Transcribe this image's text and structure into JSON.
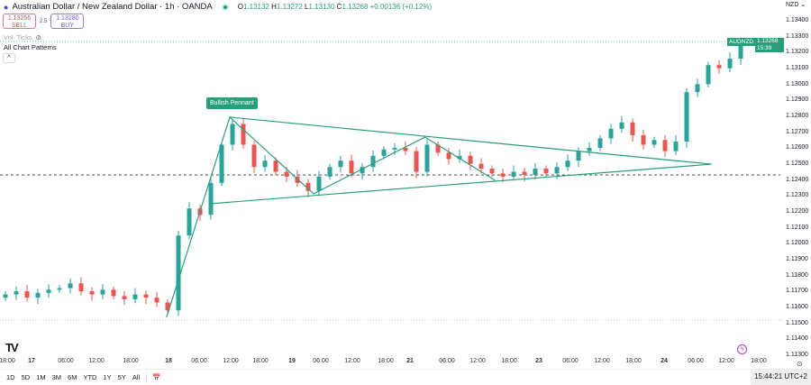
{
  "header": {
    "title": "Australian Dollar / New Zealand Dollar · 1h · OANDA",
    "open_label": "O",
    "open": "1.13132",
    "high_label": "H",
    "high": "1.13272",
    "low_label": "L",
    "low": "1.13130",
    "close_label": "C",
    "close": "1.13268",
    "change": "+0.00136 (+0.12%)"
  },
  "trade": {
    "sell_price": "1.13256",
    "sell_label": "SELL",
    "spread": "2.5",
    "buy_price": "1.13280",
    "buy_label": "BUY"
  },
  "indicators": {
    "vol": "Vol",
    "ticks": "Ticks",
    "eye_icon": "eye-off-icon"
  },
  "pattern_label": "All Chart Patterns",
  "collapse_icon": "chevron-up-icon",
  "currency": "NZD",
  "symbol_tag": "AUDNZD",
  "price_tag": "1.13268",
  "countdown": "15:39",
  "pennant_label": "Bullish Pennant",
  "y_ticks": [
    "1.13400",
    "1.13300",
    "1.13200",
    "1.13100",
    "1.13000",
    "1.12900",
    "1.12800",
    "1.12700",
    "1.12600",
    "1.12500",
    "1.12400",
    "1.12300",
    "1.12200",
    "1.12100",
    "1.12000",
    "1.11900",
    "1.11800",
    "1.11700",
    "1.11600",
    "1.11500",
    "1.11400",
    "1.11300"
  ],
  "x_ticks": [
    {
      "t": "18:00",
      "b": false
    },
    {
      "t": "17",
      "b": true
    },
    {
      "t": "06:00",
      "b": false
    },
    {
      "t": "12:00",
      "b": false
    },
    {
      "t": "18:00",
      "b": false
    },
    {
      "t": "18",
      "b": true
    },
    {
      "t": "06:00",
      "b": false
    },
    {
      "t": "12:00",
      "b": false
    },
    {
      "t": "18:00",
      "b": false
    },
    {
      "t": "19",
      "b": true
    },
    {
      "t": "06:00",
      "b": false
    },
    {
      "t": "12:00",
      "b": false
    },
    {
      "t": "18:00",
      "b": false
    },
    {
      "t": "21",
      "b": true
    },
    {
      "t": "06:00",
      "b": false
    },
    {
      "t": "12:00",
      "b": false
    },
    {
      "t": "18:00",
      "b": false
    },
    {
      "t": "23",
      "b": true
    },
    {
      "t": "06:00",
      "b": false
    },
    {
      "t": "12:00",
      "b": false
    },
    {
      "t": "18:00",
      "b": false
    },
    {
      "t": "24",
      "b": true
    },
    {
      "t": "06:00",
      "b": false
    },
    {
      "t": "12:00",
      "b": false
    },
    {
      "t": "18:00",
      "b": false
    }
  ],
  "ranges": [
    "1D",
    "5D",
    "1M",
    "3M",
    "6M",
    "YTD",
    "1Y",
    "5Y",
    "All"
  ],
  "clock": "15:44:21 UTC+2",
  "colors": {
    "up": "#26a69a",
    "down": "#ef5350",
    "pattern": "#26a07a"
  },
  "chart_data": {
    "type": "candlestick",
    "ylim": [
      1.113,
      1.1345
    ],
    "closes": [
      1.1168,
      1.117,
      1.1166,
      1.1169,
      1.1171,
      1.1172,
      1.1175,
      1.117,
      1.1168,
      1.1171,
      1.1167,
      1.1165,
      1.1168,
      1.1166,
      1.1163,
      1.1158,
      1.1205,
      1.1222,
      1.1218,
      1.1238,
      1.1262,
      1.1275,
      1.1262,
      1.1248,
      1.1252,
      1.1245,
      1.1242,
      1.1238,
      1.1233,
      1.1242,
      1.1248,
      1.1252,
      1.1244,
      1.1248,
      1.1255,
      1.1259,
      1.126,
      1.1258,
      1.1245,
      1.1262,
      1.1257,
      1.1253,
      1.1255,
      1.125,
      1.1247,
      1.1244,
      1.1242,
      1.1245,
      1.1243,
      1.1247,
      1.1244,
      1.1248,
      1.1252,
      1.1258,
      1.126,
      1.1266,
      1.1272,
      1.1276,
      1.1268,
      1.1262,
      1.1265,
      1.1258,
      1.1264,
      1.1295,
      1.13,
      1.1312,
      1.131,
      1.1316,
      1.1327
    ],
    "pattern_zigzag": [
      [
        14.9,
        1.11536
      ],
      [
        20.75,
        1.12793
      ],
      [
        28.5,
        1.12312
      ],
      [
        38.8,
        1.12668
      ],
      [
        45.3,
        1.12396
      ]
    ],
    "pattern_upper": [
      [
        20.75,
        1.12793
      ],
      [
        65.3,
        1.12498
      ]
    ],
    "pattern_lower": [
      [
        18.8,
        1.12249
      ],
      [
        65.3,
        1.12498
      ]
    ],
    "last_price": 1.13268,
    "crosshair_price": 1.1243,
    "session_low_line": 1.1152
  }
}
